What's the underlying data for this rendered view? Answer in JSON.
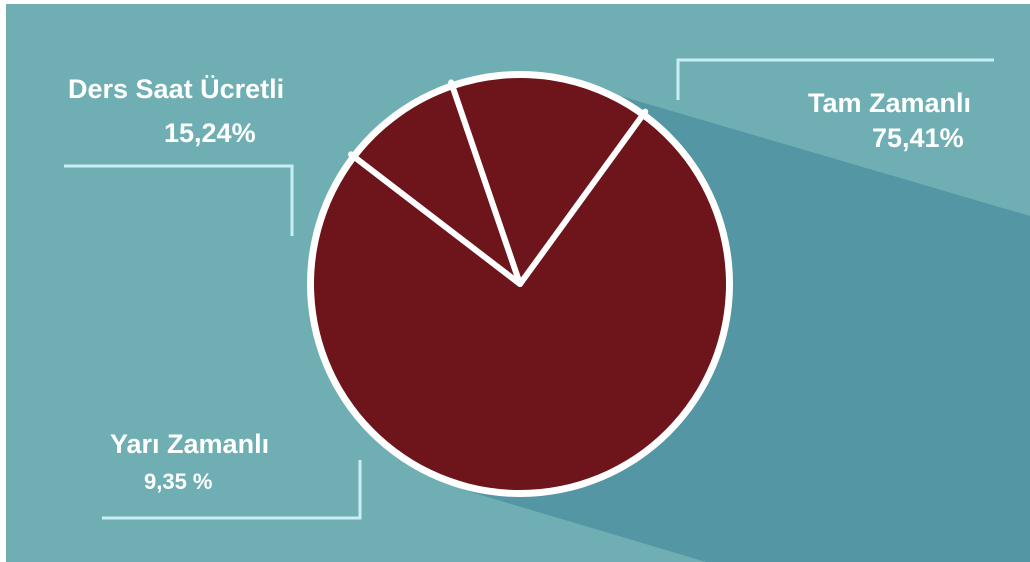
{
  "chart_data": {
    "type": "pie",
    "title": "",
    "slices": [
      {
        "name": "Tam Zamanlı",
        "value": 75.41,
        "value_label": "75,41%"
      },
      {
        "name": "Ders Saat Ücretli",
        "value": 15.24,
        "value_label": "15,24%"
      },
      {
        "name": "Yarı Zamanlı",
        "value": 9.35,
        "value_label": "9,35 %"
      }
    ],
    "legend": "none",
    "label_placement": "outside-with-leader-lines"
  },
  "colors": {
    "background": "#6fafb3",
    "shadow": "#5596a5",
    "slice_fill": "#6e141b",
    "ring": "#ffffff",
    "separator": "#ffffff",
    "leader_line": "#c9eef8",
    "label_text": "#ffffff"
  }
}
